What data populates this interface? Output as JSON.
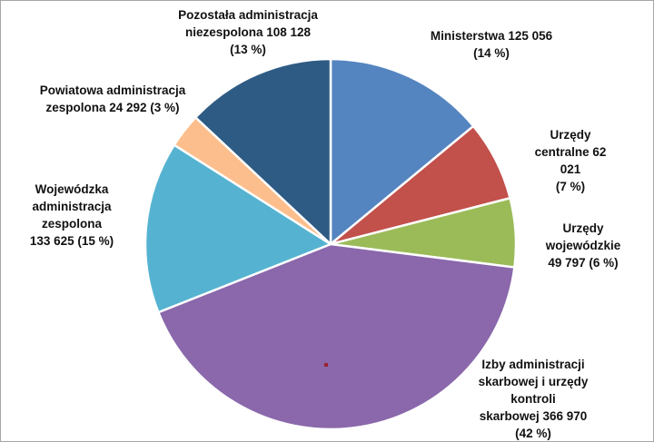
{
  "chart_data": {
    "type": "pie",
    "title": "",
    "direction": "clockwise",
    "start_angle_deg": 0,
    "legend_position": "none",
    "slices": [
      {
        "name": "Ministerstwa",
        "value": 125056,
        "percent": 14,
        "color": "#5585c0",
        "display": "Ministerstwa 125 056\n(14 %)"
      },
      {
        "name": "Urzędy centralne",
        "value": 62021,
        "percent": 7,
        "color": "#c2504b",
        "display": "Urzędy centralne 62 021\n(7 %)"
      },
      {
        "name": "Urzędy wojewódzkie",
        "value": 49797,
        "percent": 6,
        "color": "#9bbb59",
        "display": "Urzędy wojewódzkie\n49 797 (6 %)"
      },
      {
        "name": "Izby administracji skarbowej i urzędy kontroli skarbowej",
        "value": 366970,
        "percent": 42,
        "color": "#8a68ab",
        "display": "Izby administracji\nskarbowej i urzędy kontroli\nskarbowej 366 970 (42 %)"
      },
      {
        "name": "Wojewódzka administracja zespolona",
        "value": 133625,
        "percent": 15,
        "color": "#55b3d1",
        "display": "Wojewódzka\nadministracja\nzespolona\n133 625 (15 %)"
      },
      {
        "name": "Powiatowa administracja zespolona",
        "value": 24292,
        "percent": 3,
        "color": "#fbbe8c",
        "display": "Powiatowa administracja\nzespolona 24 292 (3 %)"
      },
      {
        "name": "Pozostała administracja niezespolona",
        "value": 108128,
        "percent": 13,
        "color": "#2e5b84",
        "display": "Pozostała administracja\nniezespolona 108 128\n(13 %)"
      }
    ]
  }
}
